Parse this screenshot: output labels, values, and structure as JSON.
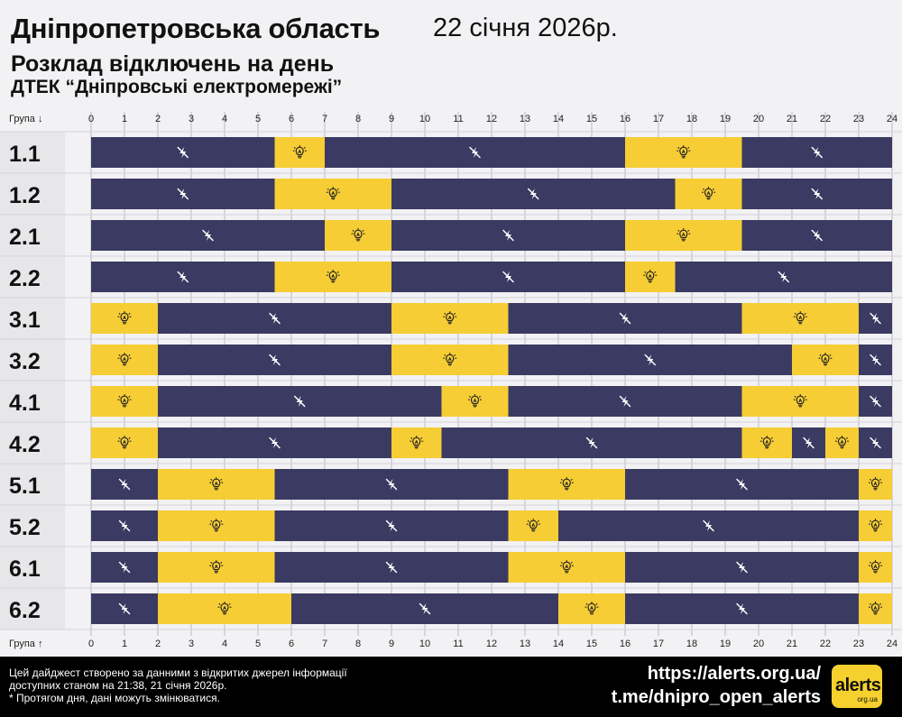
{
  "header": {
    "region": "Дніпропетровська область",
    "date": "22 січня 2026р.",
    "subtitle": "Розклад відключень на день",
    "company": "ДТЕК “Дніпровські електромережі”"
  },
  "axis": {
    "label_top": "Група ↓",
    "label_bottom": "Група ↑",
    "ticks": [
      0,
      1,
      2,
      3,
      4,
      5,
      6,
      7,
      8,
      9,
      10,
      11,
      12,
      13,
      14,
      15,
      16,
      17,
      18,
      19,
      20,
      21,
      22,
      23,
      24
    ]
  },
  "colors": {
    "off": "#3b3a62",
    "on": "#f6cd34",
    "row_label_bg": "#e7e7ea",
    "grid": "#b9b9c2",
    "background": "#f2f2f4"
  },
  "legend_icons": {
    "off": "power-off-icon",
    "on": "light-bulb-icon"
  },
  "chart_data": {
    "type": "timeline",
    "x_unit": "hours",
    "xlim": [
      0,
      24
    ],
    "groups": [
      {
        "group": "1.1",
        "segments": [
          {
            "start": 0,
            "end": 5.5,
            "state": "off"
          },
          {
            "start": 5.5,
            "end": 7,
            "state": "on"
          },
          {
            "start": 7,
            "end": 16,
            "state": "off"
          },
          {
            "start": 16,
            "end": 19.5,
            "state": "on"
          },
          {
            "start": 19.5,
            "end": 24,
            "state": "off"
          }
        ]
      },
      {
        "group": "1.2",
        "segments": [
          {
            "start": 0,
            "end": 5.5,
            "state": "off"
          },
          {
            "start": 5.5,
            "end": 9,
            "state": "on"
          },
          {
            "start": 9,
            "end": 17.5,
            "state": "off"
          },
          {
            "start": 17.5,
            "end": 19.5,
            "state": "on"
          },
          {
            "start": 19.5,
            "end": 24,
            "state": "off"
          }
        ]
      },
      {
        "group": "2.1",
        "segments": [
          {
            "start": 0,
            "end": 7,
            "state": "off"
          },
          {
            "start": 7,
            "end": 9,
            "state": "on"
          },
          {
            "start": 9,
            "end": 16,
            "state": "off"
          },
          {
            "start": 16,
            "end": 19.5,
            "state": "on"
          },
          {
            "start": 19.5,
            "end": 24,
            "state": "off"
          }
        ]
      },
      {
        "group": "2.2",
        "segments": [
          {
            "start": 0,
            "end": 5.5,
            "state": "off"
          },
          {
            "start": 5.5,
            "end": 9,
            "state": "on"
          },
          {
            "start": 9,
            "end": 16,
            "state": "off"
          },
          {
            "start": 16,
            "end": 17.5,
            "state": "on"
          },
          {
            "start": 17.5,
            "end": 24,
            "state": "off"
          }
        ]
      },
      {
        "group": "3.1",
        "segments": [
          {
            "start": 0,
            "end": 2,
            "state": "on"
          },
          {
            "start": 2,
            "end": 9,
            "state": "off"
          },
          {
            "start": 9,
            "end": 12.5,
            "state": "on"
          },
          {
            "start": 12.5,
            "end": 19.5,
            "state": "off"
          },
          {
            "start": 19.5,
            "end": 23,
            "state": "on"
          },
          {
            "start": 23,
            "end": 24,
            "state": "off"
          }
        ]
      },
      {
        "group": "3.2",
        "segments": [
          {
            "start": 0,
            "end": 2,
            "state": "on"
          },
          {
            "start": 2,
            "end": 9,
            "state": "off"
          },
          {
            "start": 9,
            "end": 12.5,
            "state": "on"
          },
          {
            "start": 12.5,
            "end": 21,
            "state": "off"
          },
          {
            "start": 21,
            "end": 23,
            "state": "on"
          },
          {
            "start": 23,
            "end": 24,
            "state": "off"
          }
        ]
      },
      {
        "group": "4.1",
        "segments": [
          {
            "start": 0,
            "end": 2,
            "state": "on"
          },
          {
            "start": 2,
            "end": 10.5,
            "state": "off"
          },
          {
            "start": 10.5,
            "end": 12.5,
            "state": "on"
          },
          {
            "start": 12.5,
            "end": 19.5,
            "state": "off"
          },
          {
            "start": 19.5,
            "end": 23,
            "state": "on"
          },
          {
            "start": 23,
            "end": 24,
            "state": "off"
          }
        ]
      },
      {
        "group": "4.2",
        "segments": [
          {
            "start": 0,
            "end": 2,
            "state": "on"
          },
          {
            "start": 2,
            "end": 9,
            "state": "off"
          },
          {
            "start": 9,
            "end": 10.5,
            "state": "on"
          },
          {
            "start": 10.5,
            "end": 19.5,
            "state": "off"
          },
          {
            "start": 19.5,
            "end": 21,
            "state": "on"
          },
          {
            "start": 21,
            "end": 22,
            "state": "off"
          },
          {
            "start": 22,
            "end": 23,
            "state": "on"
          },
          {
            "start": 23,
            "end": 24,
            "state": "off"
          }
        ]
      },
      {
        "group": "5.1",
        "segments": [
          {
            "start": 0,
            "end": 2,
            "state": "off"
          },
          {
            "start": 2,
            "end": 5.5,
            "state": "on"
          },
          {
            "start": 5.5,
            "end": 12.5,
            "state": "off"
          },
          {
            "start": 12.5,
            "end": 16,
            "state": "on"
          },
          {
            "start": 16,
            "end": 23,
            "state": "off"
          },
          {
            "start": 23,
            "end": 24,
            "state": "on"
          }
        ]
      },
      {
        "group": "5.2",
        "segments": [
          {
            "start": 0,
            "end": 2,
            "state": "off"
          },
          {
            "start": 2,
            "end": 5.5,
            "state": "on"
          },
          {
            "start": 5.5,
            "end": 12.5,
            "state": "off"
          },
          {
            "start": 12.5,
            "end": 14,
            "state": "on"
          },
          {
            "start": 14,
            "end": 23,
            "state": "off"
          },
          {
            "start": 23,
            "end": 24,
            "state": "on"
          }
        ]
      },
      {
        "group": "6.1",
        "segments": [
          {
            "start": 0,
            "end": 2,
            "state": "off"
          },
          {
            "start": 2,
            "end": 5.5,
            "state": "on"
          },
          {
            "start": 5.5,
            "end": 12.5,
            "state": "off"
          },
          {
            "start": 12.5,
            "end": 16,
            "state": "on"
          },
          {
            "start": 16,
            "end": 23,
            "state": "off"
          },
          {
            "start": 23,
            "end": 24,
            "state": "on"
          }
        ]
      },
      {
        "group": "6.2",
        "segments": [
          {
            "start": 0,
            "end": 2,
            "state": "off"
          },
          {
            "start": 2,
            "end": 6,
            "state": "on"
          },
          {
            "start": 6,
            "end": 14,
            "state": "off"
          },
          {
            "start": 14,
            "end": 16,
            "state": "on"
          },
          {
            "start": 16,
            "end": 23,
            "state": "off"
          },
          {
            "start": 23,
            "end": 24,
            "state": "on"
          }
        ]
      }
    ]
  },
  "footer": {
    "note_line1": "Цей дайджест створено за данними з відкритих джерел інформації",
    "note_line2": "доступних станом на 21:38, 21 січня 2026р.",
    "note_line3": "* Протягом дня, дані можуть змінюватися.",
    "link_site": "https://alerts.org.ua/",
    "link_telegram": "t.me/dnipro_open_alerts",
    "logo_text": "alerts",
    "logo_subtext": "org.ua"
  }
}
